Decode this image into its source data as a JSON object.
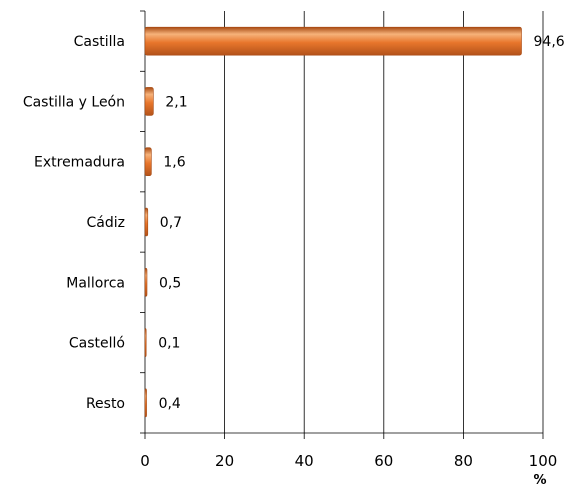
{
  "chart_data": {
    "type": "bar",
    "orientation": "horizontal",
    "categories": [
      "Castilla",
      "Castilla y León",
      "Extremadura",
      "Cádiz",
      "Mallorca",
      "Castelló",
      "Resto"
    ],
    "values": [
      94.6,
      2.1,
      1.6,
      0.7,
      0.5,
      0.1,
      0.4
    ],
    "value_labels": [
      "94,6",
      "2,1",
      "1,6",
      "0,7",
      "0,5",
      "0,1",
      "0,4"
    ],
    "xticks": [
      0,
      20,
      40,
      60,
      80,
      100
    ],
    "tick_labels": [
      "0",
      "20",
      "40",
      "60",
      "80",
      "100"
    ],
    "xlim": [
      0,
      100
    ],
    "xlabel": "%",
    "grid": "vertical",
    "colors": {
      "bar": "#e8762c",
      "bar_light": "#f6b27a",
      "bar_dark": "#a84a12",
      "grid": "#000000"
    }
  }
}
